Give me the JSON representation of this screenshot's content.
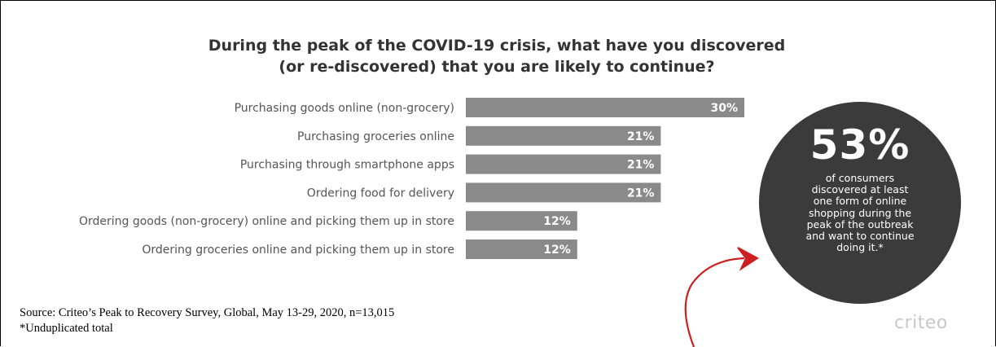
{
  "chart_data": {
    "type": "bar",
    "orientation": "horizontal",
    "title": "During the peak of the COVID-19 crisis, what have you discovered (or re-discovered) that you are likely to continue?",
    "title_lines": [
      "During the peak of the COVID-19 crisis, what have you discovered",
      "(or re-discovered) that you are likely to continue?"
    ],
    "categories": [
      "Purchasing goods online (non-grocery)",
      "Purchasing groceries online",
      "Purchasing through smartphone apps",
      "Ordering food for delivery",
      "Ordering goods (non-grocery) online and picking them up in store",
      "Ordering groceries online and picking them up in store"
    ],
    "values": [
      30,
      21,
      21,
      21,
      12,
      12
    ],
    "value_labels": [
      "30%",
      "21%",
      "21%",
      "21%",
      "12%",
      "12%"
    ],
    "xlim": [
      0,
      30
    ],
    "bar_color": "#8a8a8a",
    "grid": false
  },
  "callout": {
    "value": "53%",
    "text_lines": [
      "of consumers",
      "discovered at least",
      "one form of online",
      "shopping during the",
      "peak of the outbreak",
      "and want to continue",
      "doing it.*"
    ],
    "bg_color": "#3b3b3b"
  },
  "source": {
    "line1": "Source: Criteo’s Peak to Recovery Survey, Global, May 13-29, 2020, n=13,015",
    "line2": "*Unduplicated total"
  },
  "logo": "criteo",
  "annotation_color": "#cc1f1f"
}
